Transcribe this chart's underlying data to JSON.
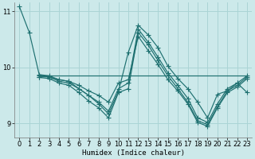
{
  "xlabel": "Humidex (Indice chaleur)",
  "xlim": [
    -0.5,
    23.5
  ],
  "ylim": [
    8.75,
    11.15
  ],
  "yticks": [
    9,
    10,
    11
  ],
  "xticks": [
    0,
    1,
    2,
    3,
    4,
    5,
    6,
    7,
    8,
    9,
    10,
    11,
    12,
    13,
    14,
    15,
    16,
    17,
    18,
    19,
    20,
    21,
    22,
    23
  ],
  "bg_color": "#cce9ea",
  "grid_color": "#aad4d5",
  "line_color": "#1e7070",
  "hline_y": 9.85,
  "line1_x": [
    0,
    1,
    2,
    3,
    4,
    5,
    6,
    7,
    8,
    9,
    10,
    11,
    12,
    13,
    14,
    15,
    16,
    17,
    18,
    19,
    20,
    21,
    22,
    23
  ],
  "line1_y": [
    11.08,
    10.62,
    9.87,
    9.85,
    9.78,
    9.75,
    9.62,
    9.5,
    9.35,
    9.17,
    9.57,
    10.27,
    10.75,
    10.58,
    10.35,
    10.02,
    9.8,
    9.62,
    9.38,
    9.1,
    9.52,
    9.58,
    9.72,
    9.55
  ],
  "line2_x": [
    2,
    3,
    4,
    5,
    6,
    7,
    8,
    9,
    10,
    11,
    12,
    13,
    14,
    15,
    16,
    17,
    18,
    19,
    20,
    21,
    22,
    23
  ],
  "line2_y": [
    9.83,
    9.83,
    9.75,
    9.72,
    9.62,
    9.5,
    9.38,
    9.22,
    9.62,
    9.72,
    10.68,
    10.45,
    10.18,
    9.9,
    9.68,
    9.45,
    9.1,
    9.02,
    9.35,
    9.62,
    9.72,
    9.85
  ],
  "line3_x": [
    2,
    3,
    4,
    5,
    6,
    7,
    8,
    9,
    10,
    11,
    12,
    13,
    14,
    15,
    16,
    17,
    18,
    19,
    20,
    21,
    22,
    23
  ],
  "line3_y": [
    9.82,
    9.8,
    9.72,
    9.68,
    9.55,
    9.4,
    9.28,
    9.1,
    9.55,
    9.62,
    10.62,
    10.4,
    10.12,
    9.85,
    9.62,
    9.38,
    9.05,
    8.98,
    9.3,
    9.58,
    9.68,
    9.83
  ],
  "line4_x": [
    2,
    3,
    4,
    5,
    6,
    7,
    8,
    9,
    10,
    11,
    12,
    13,
    14,
    15,
    16,
    17,
    18,
    19,
    20,
    21,
    22,
    23
  ],
  "line4_y": [
    9.85,
    9.83,
    9.78,
    9.75,
    9.68,
    9.58,
    9.5,
    9.38,
    9.72,
    9.78,
    10.55,
    10.3,
    10.05,
    9.78,
    9.58,
    9.35,
    9.02,
    8.95,
    9.28,
    9.55,
    9.65,
    9.8
  ]
}
